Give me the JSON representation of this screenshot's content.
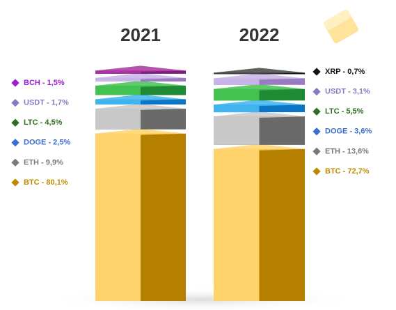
{
  "chart_data": {
    "type": "bar",
    "stacked": true,
    "categories": [
      "2021",
      "2022"
    ],
    "series": [
      {
        "name": "BTC",
        "color": "#c08a00",
        "faces": [
          "#ffd36b",
          "#b57f00"
        ],
        "values": [
          80.1,
          72.7
        ],
        "value_labels": [
          "BTC - 80,1%",
          "BTC - 72,7%"
        ]
      },
      {
        "name": "ETH",
        "color": "#7a7a7a",
        "faces": [
          "#c8c8c8",
          "#6a6a6a"
        ],
        "values": [
          9.9,
          13.6
        ],
        "value_labels": [
          "ETH - 9,9%",
          "ETH - 13,6%"
        ]
      },
      {
        "name": "DOGE",
        "color": "#3b6fcf",
        "faces": [
          "#3fb4ef",
          "#0b74c4"
        ],
        "values": [
          2.5,
          3.6
        ],
        "value_labels": [
          "DOGE - 2,5%",
          "DOGE - 3,6%"
        ]
      },
      {
        "name": "LTC",
        "color": "#2f6e1f",
        "faces": [
          "#43c251",
          "#1f8a34"
        ],
        "values": [
          4.5,
          5.5
        ],
        "value_labels": [
          "LTC - 4,5%",
          "LTC - 5,5%"
        ]
      },
      {
        "name": "USDT",
        "color": "#8a78c0",
        "faces": [
          "#c8b4e6",
          "#9a7ac0"
        ],
        "values": [
          1.7,
          3.1
        ],
        "value_labels": [
          "USDT - 1,7%",
          "USDT - 3,1%"
        ]
      },
      {
        "name": "BCH",
        "color": "#9a1fd4",
        "faces": [
          "#a8359f",
          "#7a1f80"
        ],
        "values": [
          1.5,
          null
        ],
        "value_labels": [
          "BCH - 1,5%",
          null
        ]
      },
      {
        "name": "XRP",
        "color": "#111111",
        "faces": [
          "#444444",
          "#151515"
        ],
        "values": [
          null,
          0.7
        ],
        "value_labels": [
          null,
          "XRP - 0,7%"
        ]
      }
    ]
  }
}
